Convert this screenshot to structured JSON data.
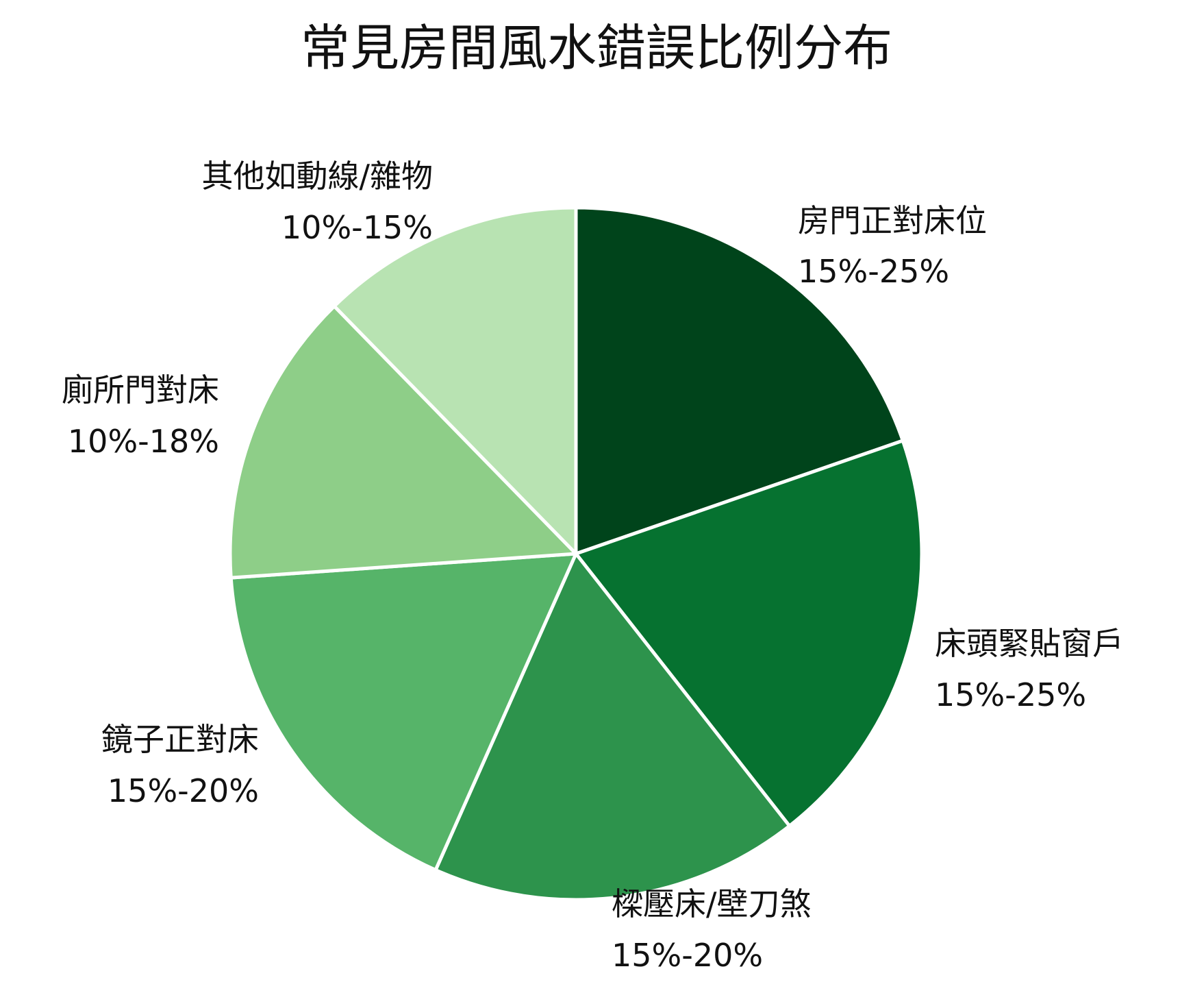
{
  "chart_data": {
    "type": "pie",
    "title": "常見房間風水錯誤比例分布",
    "start_angle": "12 o'clock, clockwise",
    "slices": [
      {
        "label": "房門正對床位",
        "range": "15%-25%",
        "value": 20,
        "color": "#00441b"
      },
      {
        "label": "床頭緊貼窗戶",
        "range": "15%-25%",
        "value": 20,
        "color": "#067230"
      },
      {
        "label": "樑壓床/壁刀煞",
        "range": "15%-20%",
        "value": 17.5,
        "color": "#2d934c"
      },
      {
        "label": "鏡子正對床",
        "range": "15%-20%",
        "value": 17.5,
        "color": "#56b469"
      },
      {
        "label": "廁所門對床",
        "range": "10%-18%",
        "value": 14,
        "color": "#8ece88"
      },
      {
        "label": "其他如動線/雜物",
        "range": "10%-15%",
        "value": 12.5,
        "color": "#b8e3b2"
      }
    ]
  }
}
